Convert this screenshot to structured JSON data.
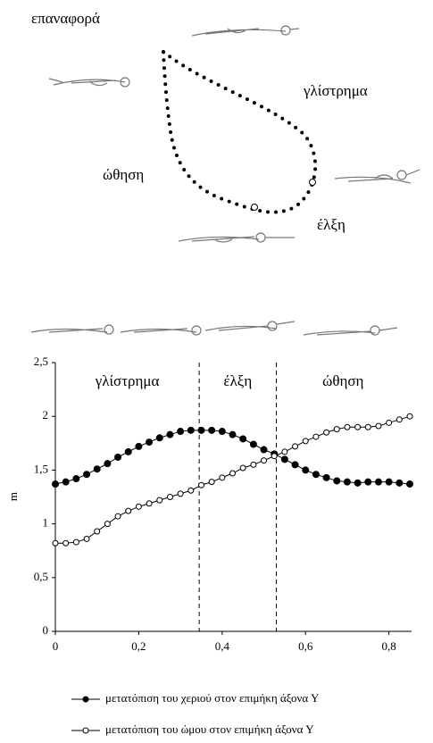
{
  "diagram": {
    "labels": [
      "επαναφορά",
      "γλίστρημα",
      "ώθηση",
      "έλξη"
    ]
  },
  "chart_data": {
    "type": "line",
    "ylabel": "m",
    "x": [
      0,
      0.025,
      0.05,
      0.075,
      0.1,
      0.125,
      0.15,
      0.175,
      0.2,
      0.225,
      0.25,
      0.275,
      0.3,
      0.325,
      0.35,
      0.375,
      0.4,
      0.425,
      0.45,
      0.475,
      0.5,
      0.525,
      0.55,
      0.575,
      0.6,
      0.625,
      0.65,
      0.675,
      0.7,
      0.725,
      0.75,
      0.775,
      0.8,
      0.825,
      0.85
    ],
    "series": [
      {
        "name": "μετατόπιση του χεριού στον επιμήκη άξονα Υ",
        "color": "#000000",
        "marker": "filled",
        "values": [
          1.37,
          1.39,
          1.42,
          1.46,
          1.51,
          1.56,
          1.62,
          1.67,
          1.72,
          1.76,
          1.8,
          1.83,
          1.86,
          1.87,
          1.87,
          1.87,
          1.86,
          1.83,
          1.79,
          1.74,
          1.69,
          1.65,
          1.6,
          1.55,
          1.5,
          1.46,
          1.43,
          1.4,
          1.39,
          1.38,
          1.39,
          1.39,
          1.39,
          1.38,
          1.37
        ]
      },
      {
        "name": "μετατόπιση του ώμου στον επιμήκη άξονα Υ",
        "color": "#000000",
        "marker": "open",
        "values": [
          0.82,
          0.82,
          0.83,
          0.86,
          0.93,
          1.0,
          1.07,
          1.12,
          1.16,
          1.19,
          1.22,
          1.25,
          1.28,
          1.31,
          1.36,
          1.39,
          1.43,
          1.47,
          1.52,
          1.55,
          1.59,
          1.63,
          1.67,
          1.72,
          1.77,
          1.81,
          1.85,
          1.88,
          1.9,
          1.9,
          1.9,
          1.91,
          1.94,
          1.97,
          2.0
        ]
      }
    ],
    "xlim": [
      0,
      0.85
    ],
    "ylim": [
      0,
      2.5
    ],
    "xticks": [
      0,
      {
        "value": 0.2,
        "label": "0,2"
      },
      {
        "value": 0.4,
        "label": "0,4"
      },
      {
        "value": 0.6,
        "label": "0,6"
      },
      {
        "value": 0.8,
        "label": "0,8"
      }
    ],
    "yticks": [
      0,
      {
        "value": 0.5,
        "label": "0,5"
      },
      1,
      {
        "value": 1.5,
        "label": "1,5"
      },
      2,
      {
        "value": 2.5,
        "label": "2,5"
      }
    ],
    "vlines": [
      0.345,
      0.53
    ],
    "phases": [
      "γλίστρημα",
      "έλξη",
      "ώθηση"
    ]
  }
}
